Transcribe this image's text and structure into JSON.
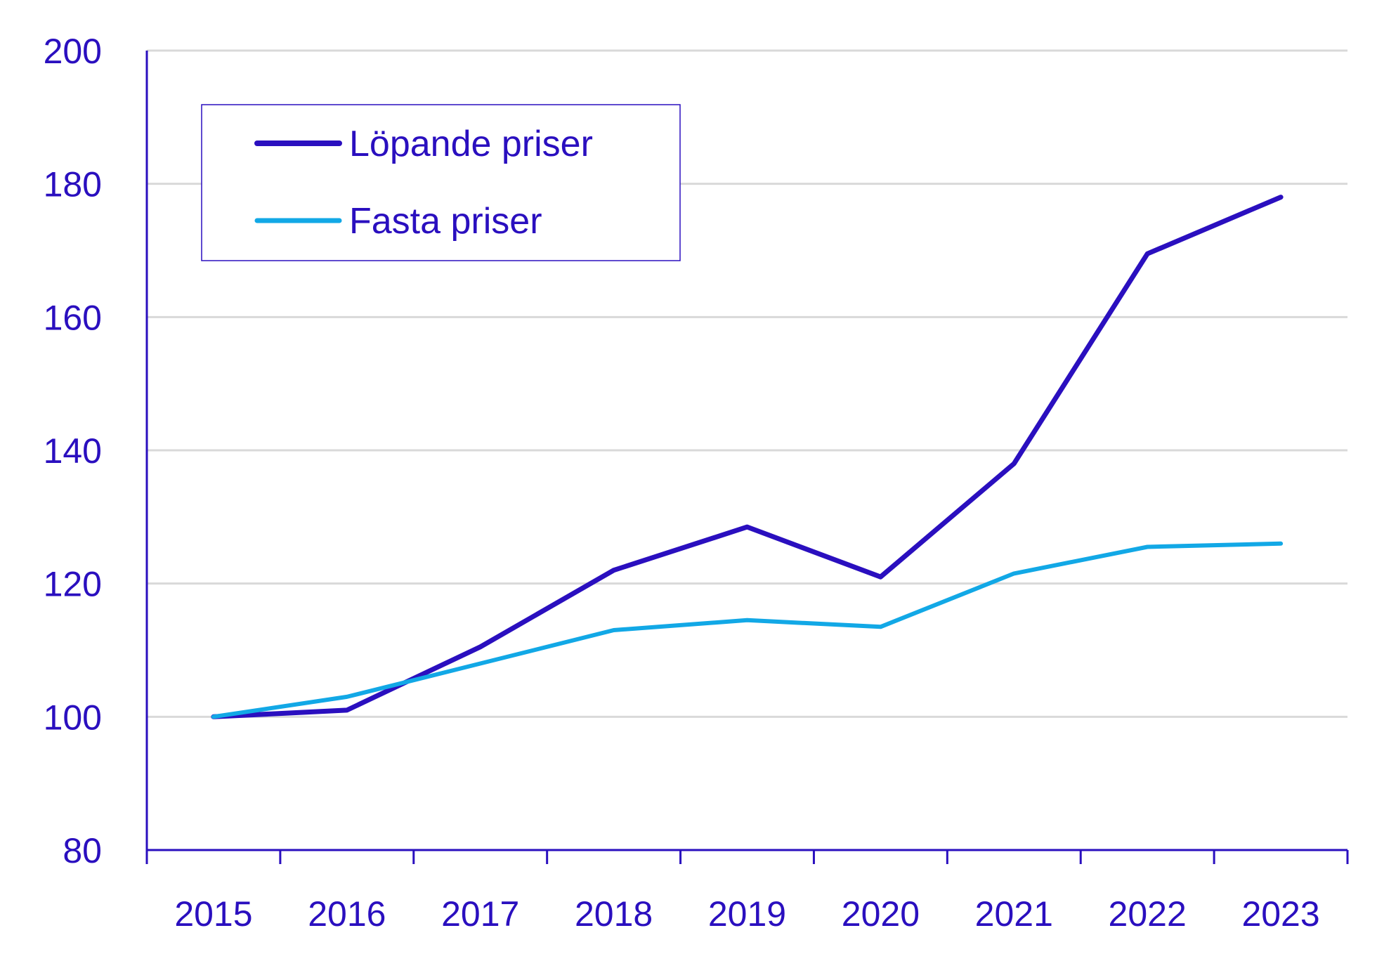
{
  "chart_data": {
    "type": "line",
    "title": "",
    "xlabel": "",
    "ylabel": "",
    "x": [
      "2015",
      "2016",
      "2017",
      "2018",
      "2019",
      "2020",
      "2021",
      "2022",
      "2023"
    ],
    "ylim": [
      80,
      200
    ],
    "yticks": [
      80,
      100,
      120,
      140,
      160,
      180,
      200
    ],
    "grid": true,
    "legend_position": "top-left",
    "series": [
      {
        "name": "Löpande priser",
        "color": "#2a0fbf",
        "values": [
          100,
          101,
          110.5,
          122,
          128.5,
          121,
          138,
          169.5,
          178
        ]
      },
      {
        "name": "Fasta priser",
        "color": "#12a8e6",
        "values": [
          100,
          103,
          108,
          113,
          114.5,
          113.5,
          121.5,
          125.5,
          126
        ]
      }
    ],
    "colors": {
      "axis": "#2a0fbf",
      "text": "#2a0fbf",
      "grid": "#d9d9d9"
    }
  }
}
